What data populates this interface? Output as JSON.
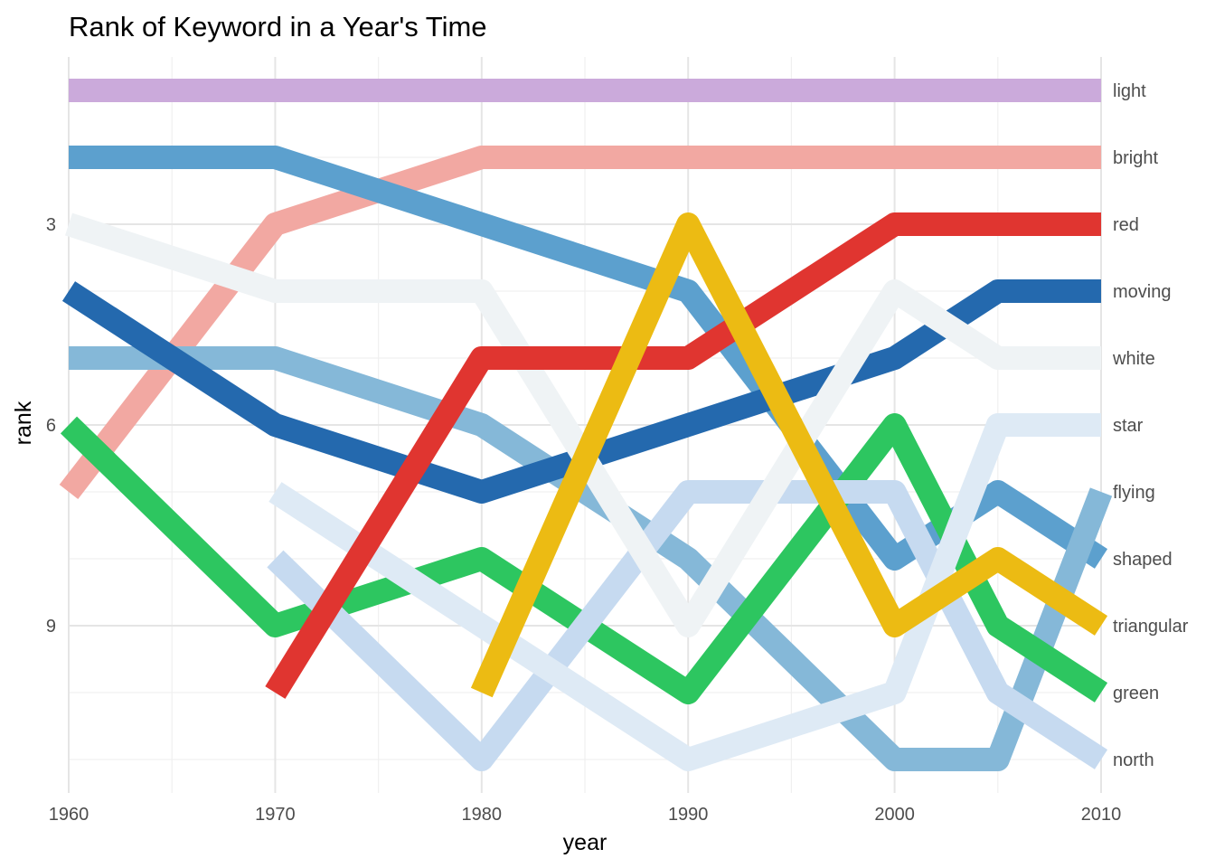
{
  "chart_data": {
    "type": "line",
    "title": "Rank of Keyword in a Year's Time",
    "xlabel": "year",
    "ylabel": "rank",
    "xlim": [
      1960,
      2010
    ],
    "ylim": [
      11.5,
      0.5
    ],
    "y_reversed": true,
    "x_ticks": [
      1960,
      1970,
      1980,
      1990,
      2000,
      2010
    ],
    "x_tick_labels": [
      "1960",
      "1970",
      "1980",
      "1990",
      "2000",
      "2010"
    ],
    "y_ticks": [
      3,
      6,
      9
    ],
    "y_tick_labels": [
      "3",
      "6",
      "9"
    ],
    "grid": true,
    "legend": "direct-labels-right",
    "series": [
      {
        "name": "light",
        "color": "#cbaadb",
        "x": [
          1960,
          2010
        ],
        "y": [
          1,
          1
        ]
      },
      {
        "name": "bright",
        "color": "#f2a8a2",
        "x": [
          1960,
          1970,
          1980,
          1990,
          2000,
          2005,
          2010
        ],
        "y": [
          7,
          3,
          2,
          2,
          2,
          2,
          2
        ]
      },
      {
        "name": "shaped",
        "color": "#5ca0ce",
        "x": [
          1960,
          1970,
          1980,
          1990,
          2000,
          2005,
          2010
        ],
        "y": [
          2,
          2,
          3,
          4,
          8,
          7,
          8
        ]
      },
      {
        "name": "flying",
        "color": "#85b8d8",
        "x": [
          1960,
          1970,
          1980,
          1990,
          2000,
          2005,
          2010
        ],
        "y": [
          5,
          5,
          6,
          8,
          11,
          11,
          7
        ]
      },
      {
        "name": "moving",
        "color": "#2469ae",
        "x": [
          1960,
          1970,
          1980,
          1990,
          2000,
          2005,
          2010
        ],
        "y": [
          4,
          6,
          7,
          6,
          5,
          4,
          4
        ]
      },
      {
        "name": "green",
        "color": "#2dc660",
        "x": [
          1960,
          1970,
          1980,
          1990,
          2000,
          2005,
          2010
        ],
        "y": [
          6,
          9,
          8,
          10,
          6,
          9,
          10
        ]
      },
      {
        "name": "north",
        "color": "#c6daf0",
        "x": [
          1970,
          1980,
          1990,
          2000,
          2005,
          2010
        ],
        "y": [
          8,
          11,
          7,
          7,
          10,
          11
        ]
      },
      {
        "name": "star",
        "color": "#deeaf5",
        "x": [
          1970,
          1980,
          1990,
          2000,
          2005,
          2010
        ],
        "y": [
          7,
          9,
          11,
          10,
          6,
          6
        ]
      },
      {
        "name": "white",
        "color": "#eff3f5",
        "x": [
          1960,
          1970,
          1980,
          1990,
          2000,
          2005,
          2010
        ],
        "y": [
          3,
          4,
          4,
          9,
          4,
          5,
          5
        ]
      },
      {
        "name": "red",
        "color": "#e03530",
        "x": [
          1970,
          1980,
          1990,
          2000,
          2005,
          2010
        ],
        "y": [
          10,
          5,
          5,
          3,
          3,
          3
        ]
      },
      {
        "name": "triangular",
        "color": "#ecbb13",
        "x": [
          1980,
          1990,
          2000,
          2005,
          2010
        ],
        "y": [
          10,
          3,
          9,
          8,
          9
        ]
      }
    ],
    "end_labels": [
      {
        "text": "light",
        "rank": 1
      },
      {
        "text": "bright",
        "rank": 2
      },
      {
        "text": "red",
        "rank": 3
      },
      {
        "text": "moving",
        "rank": 4
      },
      {
        "text": "white",
        "rank": 5
      },
      {
        "text": "star",
        "rank": 6
      },
      {
        "text": "flying",
        "rank": 7
      },
      {
        "text": "shaped",
        "rank": 8
      },
      {
        "text": "triangular",
        "rank": 9
      },
      {
        "text": "green",
        "rank": 10
      },
      {
        "text": "north",
        "rank": 11
      }
    ]
  }
}
